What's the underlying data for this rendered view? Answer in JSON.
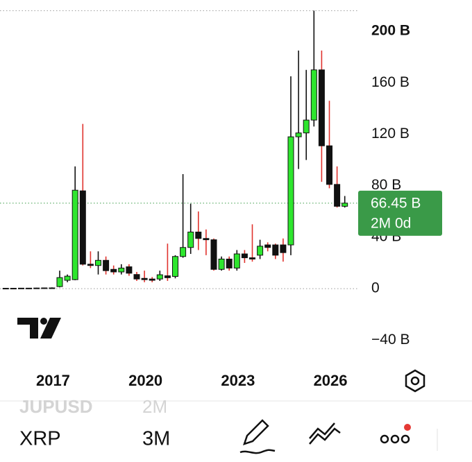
{
  "chart_data": {
    "type": "candlestick",
    "categories": [
      null,
      null,
      null,
      null,
      null,
      null,
      null,
      "2017",
      null,
      null,
      null,
      null,
      null,
      null,
      null,
      null,
      null,
      null,
      null,
      "2020",
      null,
      null,
      null,
      null,
      null,
      null,
      null,
      null,
      null,
      null,
      null,
      "2023",
      null,
      null,
      null,
      null,
      null,
      null,
      null,
      null,
      null,
      null,
      null,
      "2026",
      null
    ],
    "open": [
      0.2,
      0.3,
      0.3,
      0.4,
      0.4,
      0.5,
      0.6,
      1.6,
      6.5,
      7,
      76,
      19,
      18,
      22,
      15,
      13,
      17,
      11,
      8,
      7.5,
      7.5,
      10,
      9.5,
      25,
      32,
      44,
      39,
      38,
      15,
      23,
      16,
      27,
      24,
      26,
      34,
      34,
      34,
      34,
      118,
      121,
      131,
      170,
      111,
      81,
      64
    ],
    "high": [
      0.4,
      0.5,
      0.5,
      0.6,
      0.7,
      0.8,
      1,
      14,
      11,
      95,
      128,
      29,
      29,
      25,
      18,
      19,
      19,
      13,
      14,
      9,
      14,
      35,
      26,
      89,
      66,
      60,
      46,
      39,
      25,
      25,
      30,
      30,
      50,
      38,
      36,
      35,
      39,
      165,
      185,
      170,
      216,
      185,
      146,
      95,
      72
    ],
    "low": [
      0.1,
      0.2,
      0.2,
      0.3,
      0.3,
      0.4,
      0.5,
      1,
      5,
      6.5,
      18,
      16,
      11,
      11,
      11,
      11,
      10,
      6,
      5,
      5,
      6,
      6,
      8,
      24,
      27,
      30,
      26,
      14,
      14,
      14,
      14,
      20,
      21,
      23,
      29,
      23,
      21,
      26,
      93,
      100,
      126,
      83,
      78,
      63,
      63
    ],
    "close": [
      0.3,
      0.3,
      0.4,
      0.4,
      0.5,
      0.6,
      0.6,
      8.6,
      9.7,
      76.5,
      19,
      18,
      22,
      14,
      13,
      16,
      12,
      7.5,
      7,
      6.5,
      10.8,
      8.5,
      25,
      32,
      44,
      39,
      38,
      15,
      23,
      16,
      27,
      24,
      23,
      33,
      32,
      26,
      28,
      118,
      121,
      131,
      170,
      111,
      81,
      64,
      66.45
    ],
    "up_color": "#2ee62e",
    "down_color": "#111111",
    "wick_color": "#111111",
    "down_wick_color": "#e0322d",
    "ylim": [
      -56,
      224.3
    ],
    "yticks": [
      {
        "value": 200,
        "label": "200 B"
      },
      {
        "value": 160,
        "label": "160 B"
      },
      {
        "value": 120,
        "label": "120 B"
      },
      {
        "value": 80,
        "label": "80 B"
      },
      {
        "value": 40,
        "label": "40 B"
      },
      0,
      {
        "value": -40,
        "label": "−40 B"
      }
    ],
    "last_price_label": "66.45 B",
    "countdown": "2M 0d",
    "tag_color": "#3a9a48"
  },
  "toolbar": {
    "previous_symbol": "JUPUSD",
    "previous_interval": "2M",
    "symbol": "XRP",
    "interval": "3M"
  }
}
